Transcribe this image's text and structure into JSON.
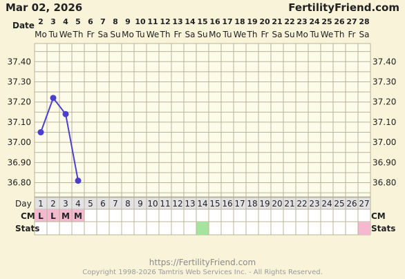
{
  "header": {
    "date": "Mar 02, 2026",
    "brand": "FertilityFriend.com"
  },
  "labels": {
    "date_row": "Date",
    "day_row": "Day",
    "cm_row": "CM",
    "stats_row": "Stats"
  },
  "footer": {
    "url": "https://FertilityFriend.com",
    "copyright": "Copyright 1998-2026 Tamtris Web Services Inc. - All Rights Reserved."
  },
  "colors": {
    "background": "#f8f3d9",
    "plot_area": "#fdfbea",
    "grid": "#b8b49a",
    "line": "#4b3fcf",
    "cm_fill": "#f4b8cf",
    "stats_green": "#a6e39c",
    "stats_pink": "#f4b8cf",
    "day_row_fill": "#e3e3e6"
  },
  "chart_data": {
    "type": "line",
    "dates": [
      "2",
      "3",
      "4",
      "5",
      "6",
      "7",
      "8",
      "9",
      "10",
      "11",
      "12",
      "13",
      "14",
      "15",
      "16",
      "17",
      "18",
      "19",
      "20",
      "21",
      "22",
      "23",
      "24",
      "25",
      "26",
      "27",
      "28"
    ],
    "weekdays": [
      "Mo",
      "Tu",
      "We",
      "Th",
      "Fr",
      "Sa",
      "Su",
      "Mo",
      "Tu",
      "We",
      "Th",
      "Fr",
      "Sa",
      "Su",
      "Mo",
      "Tu",
      "We",
      "Th",
      "Fr",
      "Sa",
      "Su",
      "Mo",
      "Tu",
      "We",
      "Th",
      "Fr",
      "Sa"
    ],
    "cycle_days": [
      "1",
      "2",
      "3",
      "4",
      "5",
      "6",
      "7",
      "8",
      "9",
      "10",
      "11",
      "12",
      "13",
      "14",
      "15",
      "16",
      "17",
      "18",
      "19",
      "20",
      "21",
      "22",
      "23",
      "24",
      "25",
      "26",
      "27"
    ],
    "y_ticks": [
      "37.40",
      "37.30",
      "37.20",
      "37.10",
      "37.00",
      "36.90",
      "36.80"
    ],
    "ylim": [
      36.73,
      37.49
    ],
    "temperatures": [
      {
        "day": 1,
        "value": 37.05
      },
      {
        "day": 2,
        "value": 37.22
      },
      {
        "day": 3,
        "value": 37.14
      },
      {
        "day": 4,
        "value": 36.81
      }
    ],
    "cm": [
      {
        "day": 1,
        "code": "L"
      },
      {
        "day": 2,
        "code": "L"
      },
      {
        "day": 3,
        "code": "M"
      },
      {
        "day": 4,
        "code": "M"
      }
    ],
    "stats_marks": [
      {
        "day": 14,
        "color": "green"
      },
      {
        "day": 27,
        "color": "pink"
      }
    ]
  }
}
